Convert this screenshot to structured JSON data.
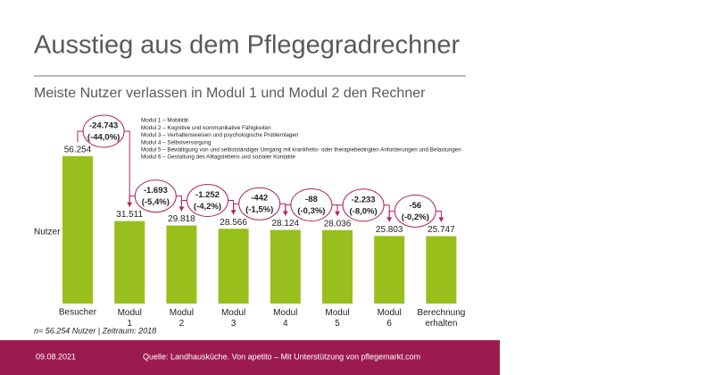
{
  "chart_data": {
    "type": "bar",
    "title": "Ausstieg aus dem Pflegegradrechner",
    "subtitle": "Meiste Nutzer verlassen in Modul 1 und Modul 2 den Rechner",
    "ylabel": "Nutzer",
    "categories": [
      "Besucher",
      "Modul 1",
      "Modul 2",
      "Modul 3",
      "Modul 4",
      "Modul 5",
      "Modul 6",
      "Berechnung erhalten"
    ],
    "values": [
      56254,
      31511,
      29818,
      28566,
      28124,
      28036,
      25803,
      25747
    ],
    "value_labels": [
      "56.254",
      "31.511",
      "29.818",
      "28.566",
      "28.124",
      "28.036",
      "25.803",
      "25.747"
    ],
    "color": "#99bf1c",
    "annotations": [
      [
        "-24.743",
        "(-44,0%)"
      ],
      [
        "-1.693",
        "(-5,4%)"
      ],
      [
        "-1.252",
        "(-4,2%)"
      ],
      [
        "-442",
        "(-1,5%)"
      ],
      [
        "-88",
        "(-0,3%)"
      ],
      [
        "-2.233",
        "(-8,0%)"
      ],
      [
        "-56",
        "(-0,2%)"
      ]
    ],
    "notes": [
      "Modul 1 – Mobilität",
      "Modul 2 – Kognitive und kommunikative  Fähigkeiten",
      "Modul 3 – Verhaltensweisen und psychologische Problemlagen",
      "Modul 4 – Selbstversorgung",
      "Modul 5 – Bewältigung von und selbstständiger Umgang mit krankheits- oder therapiebedingten Anforderungen und Belastungen",
      "Modul 6 – Gestaltung des Alltagslebens und sozialer Kontakte"
    ],
    "footnote": "n= 56.254 Nutzer | Zeitraum: 2018"
  },
  "footer": {
    "date": "09.08.2021",
    "source": "Quelle: Landhausküche. Von apetito – Mit Unterstützung von pflegemarkt.com"
  }
}
